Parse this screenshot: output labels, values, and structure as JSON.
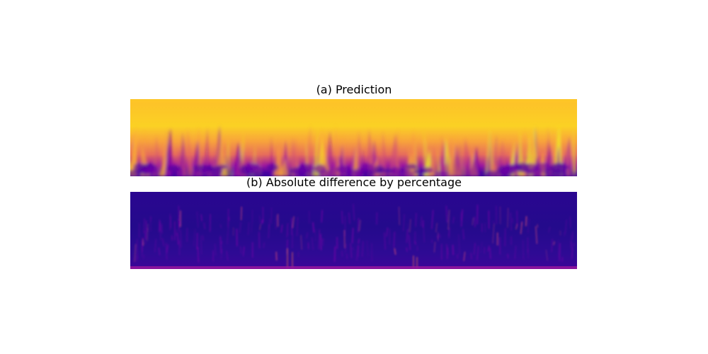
{
  "chart_data": [
    {
      "type": "heatmap",
      "title": "(a) Prediction",
      "colormap": "plasma",
      "axes_visible": false,
      "grid": false
    },
    {
      "type": "heatmap",
      "title": "(b) Absolute difference by percentage",
      "colormap": "plasma",
      "axes_visible": false,
      "grid": false
    }
  ]
}
